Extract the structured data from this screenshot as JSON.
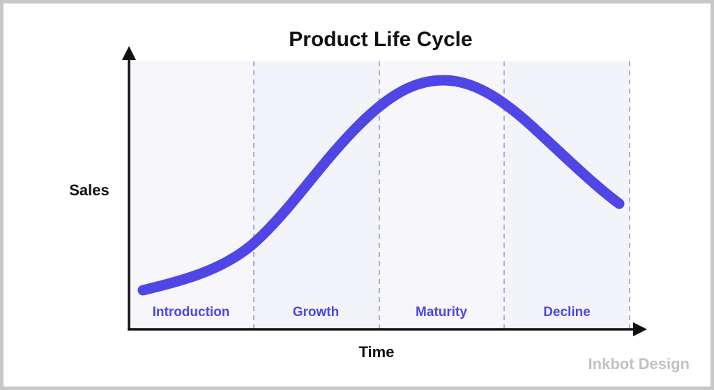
{
  "title": "Product Life Cycle",
  "y_axis_label": "Sales",
  "x_axis_label": "Time",
  "stages": [
    "Introduction",
    "Growth",
    "Maturity",
    "Decline"
  ],
  "watermark": "Inkbot Design",
  "colors": {
    "accent": "#4f46e5",
    "stage_label": "#4f46e5",
    "zone_fill": "#f6f6fb",
    "divider": "#9a9ae0",
    "axis": "#111111",
    "frame": "#c8c8c8"
  }
}
